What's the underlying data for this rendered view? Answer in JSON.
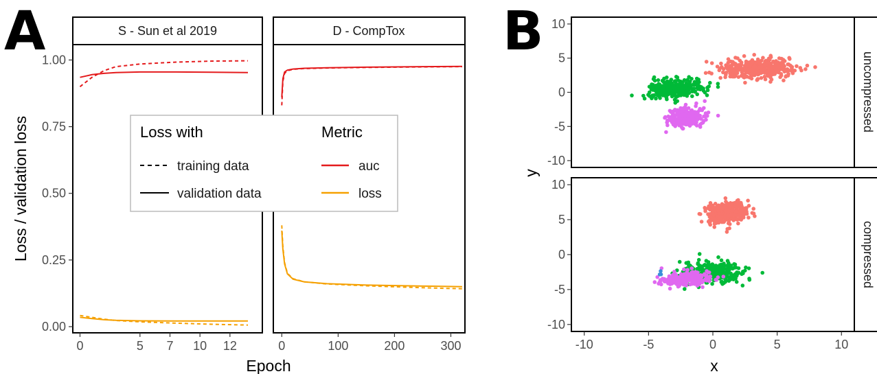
{
  "panel_labels": {
    "a": "A",
    "b": "B"
  },
  "colors": {
    "auc": "#e41a1c",
    "loss": "#f5a000",
    "cluster1": "#f8766d",
    "cluster2": "#00ba38",
    "cluster3": "#e068f0",
    "cluster4": "#3a8fd9"
  },
  "chart_data": [
    {
      "type": "line",
      "panel": "A",
      "facets": [
        "S - Sun et al 2019",
        "D - CompTox"
      ],
      "xlabel": "Epoch",
      "ylabel": "Loss / validation loss",
      "ylim": [
        0,
        1.05
      ],
      "y_ticks": [
        "0.00",
        "0.25",
        "0.50",
        "0.75",
        "1.00"
      ],
      "facet_x_ticks": [
        {
          "facet": "S - Sun et al 2019",
          "ticks": [
            "0",
            "5",
            "7",
            "10",
            "12"
          ]
        },
        {
          "facet": "D - CompTox",
          "ticks": [
            "0",
            "100",
            "200",
            "300"
          ]
        }
      ],
      "legend": {
        "linetype_title": "Loss with",
        "linetype_items": [
          "training data",
          "validation data"
        ],
        "color_title": "Metric",
        "color_items": [
          "auc",
          "loss"
        ]
      },
      "facet_data": [
        {
          "facet": "S - Sun et al 2019",
          "x_range": [
            -0.6,
            15.2
          ],
          "series": [
            {
              "metric": "auc",
              "linetype": "training data",
              "x": [
                0,
                1,
                2,
                3,
                5,
                8,
                11,
                14
              ],
              "y": [
                0.9,
                0.935,
                0.96,
                0.975,
                0.985,
                0.992,
                0.996,
                0.997
              ]
            },
            {
              "metric": "auc",
              "linetype": "validation data",
              "x": [
                0,
                1,
                2,
                3,
                5,
                8,
                11,
                14
              ],
              "y": [
                0.935,
                0.945,
                0.95,
                0.953,
                0.955,
                0.955,
                0.954,
                0.953
              ]
            },
            {
              "metric": "loss",
              "linetype": "training data",
              "x": [
                0,
                1,
                2,
                3,
                5,
                8,
                11,
                14
              ],
              "y": [
                0.042,
                0.035,
                0.028,
                0.023,
                0.018,
                0.013,
                0.009,
                0.006
              ]
            },
            {
              "metric": "loss",
              "linetype": "validation data",
              "x": [
                0,
                1,
                2,
                3,
                5,
                8,
                11,
                14
              ],
              "y": [
                0.035,
                0.03,
                0.026,
                0.024,
                0.022,
                0.021,
                0.021,
                0.021
              ]
            }
          ]
        },
        {
          "facet": "D - CompTox",
          "x_range": [
            -15,
            325
          ],
          "series": [
            {
              "metric": "auc",
              "linetype": "training data",
              "x": [
                0,
                2,
                5,
                10,
                20,
                40,
                80,
                150,
                250,
                320
              ],
              "y": [
                0.83,
                0.92,
                0.95,
                0.96,
                0.965,
                0.968,
                0.97,
                0.972,
                0.974,
                0.975
              ]
            },
            {
              "metric": "auc",
              "linetype": "validation data",
              "x": [
                0,
                2,
                5,
                10,
                20,
                40,
                80,
                150,
                250,
                320
              ],
              "y": [
                0.86,
                0.93,
                0.955,
                0.962,
                0.966,
                0.969,
                0.971,
                0.973,
                0.975,
                0.976
              ]
            },
            {
              "metric": "loss",
              "linetype": "training data",
              "x": [
                0,
                2,
                5,
                10,
                20,
                40,
                80,
                150,
                250,
                320
              ],
              "y": [
                0.38,
                0.3,
                0.24,
                0.2,
                0.18,
                0.168,
                0.16,
                0.153,
                0.146,
                0.142
              ]
            },
            {
              "metric": "loss",
              "linetype": "validation data",
              "x": [
                0,
                2,
                5,
                10,
                20,
                40,
                80,
                150,
                250,
                320
              ],
              "y": [
                0.36,
                0.29,
                0.235,
                0.198,
                0.178,
                0.168,
                0.161,
                0.156,
                0.152,
                0.15
              ]
            }
          ]
        }
      ]
    },
    {
      "type": "scatter",
      "panel": "B",
      "facets": [
        "uncompressed",
        "compressed"
      ],
      "xlabel": "x",
      "ylabel": "y",
      "xlim": [
        -11,
        11
      ],
      "ylim": [
        -11,
        11
      ],
      "x_ticks": [
        "-10",
        "-5",
        "0",
        "5",
        "10"
      ],
      "y_ticks": [
        "-10",
        "-5",
        "0",
        "5",
        "10"
      ],
      "facet_data": [
        {
          "facet": "uncompressed",
          "clusters": [
            {
              "color": "cluster1",
              "center": [
                3.5,
                3.5
              ],
              "spread": [
                2.6,
                1.3
              ],
              "n": 380
            },
            {
              "color": "cluster2",
              "center": [
                -3.0,
                0.5
              ],
              "spread": [
                2.0,
                1.2
              ],
              "n": 300
            },
            {
              "color": "cluster3",
              "center": [
                -2.0,
                -3.7
              ],
              "spread": [
                1.4,
                1.2
              ],
              "n": 240
            }
          ]
        },
        {
          "facet": "compressed",
          "clusters": [
            {
              "color": "cluster1",
              "center": [
                1.0,
                6.0
              ],
              "spread": [
                1.5,
                1.4
              ],
              "n": 320
            },
            {
              "color": "cluster2",
              "center": [
                0.0,
                -2.5
              ],
              "spread": [
                2.2,
                1.5
              ],
              "n": 330
            },
            {
              "color": "cluster3",
              "center": [
                -2.0,
                -3.5
              ],
              "spread": [
                1.8,
                0.9
              ],
              "n": 260
            },
            {
              "color": "cluster4",
              "center": [
                -4.0,
                -2.7
              ],
              "spread": [
                0.3,
                0.3
              ],
              "n": 3
            }
          ]
        }
      ]
    }
  ]
}
